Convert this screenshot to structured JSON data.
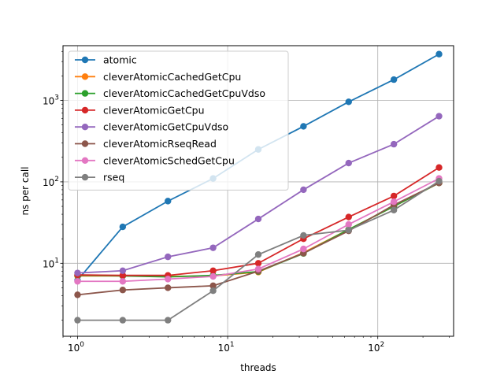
{
  "chart_data": {
    "type": "line",
    "xlabel": "threads",
    "ylabel": "ns per call",
    "xscale": "log",
    "yscale": "log",
    "xlim": [
      0.8,
      320
    ],
    "ylim": [
      1.27,
      4700
    ],
    "grid": true,
    "legend_position": "top-left",
    "x_ticks": [
      {
        "value": 1,
        "base": "10",
        "exp": "0"
      },
      {
        "value": 10,
        "base": "10",
        "exp": "1"
      },
      {
        "value": 100,
        "base": "10",
        "exp": "2"
      }
    ],
    "y_ticks": [
      {
        "value": 10,
        "base": "10",
        "exp": "1"
      },
      {
        "value": 100,
        "base": "10",
        "exp": "2"
      },
      {
        "value": 1000,
        "base": "10",
        "exp": "3"
      }
    ],
    "x": [
      1,
      2,
      4,
      8,
      16,
      32,
      64,
      128,
      256
    ],
    "series": [
      {
        "name": "atomic",
        "color": "#1f77b4",
        "values": [
          6.2,
          28,
          58,
          110,
          250,
          480,
          960,
          1800,
          3700
        ]
      },
      {
        "name": "cleverAtomicCachedGetCpu",
        "color": "#ff7f0e",
        "values": [
          7.0,
          7.0,
          6.9,
          7.0,
          7.8,
          13.5,
          26,
          50,
          97
        ]
      },
      {
        "name": "cleverAtomicCachedGetCpuVdso",
        "color": "#2ca02c",
        "values": [
          7.1,
          7.0,
          6.8,
          7.1,
          7.9,
          13.2,
          26,
          50,
          97
        ]
      },
      {
        "name": "cleverAtomicGetCpu",
        "color": "#d62728",
        "values": [
          7.2,
          7.1,
          7.1,
          8.1,
          10,
          20,
          37,
          67,
          150
        ]
      },
      {
        "name": "cleverAtomicGetCpuVdso",
        "color": "#9467bd",
        "values": [
          7.6,
          8.1,
          12,
          15.5,
          35,
          80,
          170,
          290,
          640
        ]
      },
      {
        "name": "cleverAtomicRseqRead",
        "color": "#8c564b",
        "values": [
          4.1,
          4.7,
          5.0,
          5.3,
          8.0,
          13.3,
          25,
          52,
          97
        ]
      },
      {
        "name": "cleverAtomicSchedGetCpu",
        "color": "#e377c2",
        "values": [
          6.0,
          6.0,
          6.4,
          6.9,
          8.5,
          15,
          30,
          57,
          110
        ]
      },
      {
        "name": "rseq",
        "color": "#7f7f7f",
        "values": [
          2.0,
          2.0,
          2.0,
          4.6,
          12.8,
          22,
          25.5,
          45,
          102
        ]
      }
    ]
  }
}
